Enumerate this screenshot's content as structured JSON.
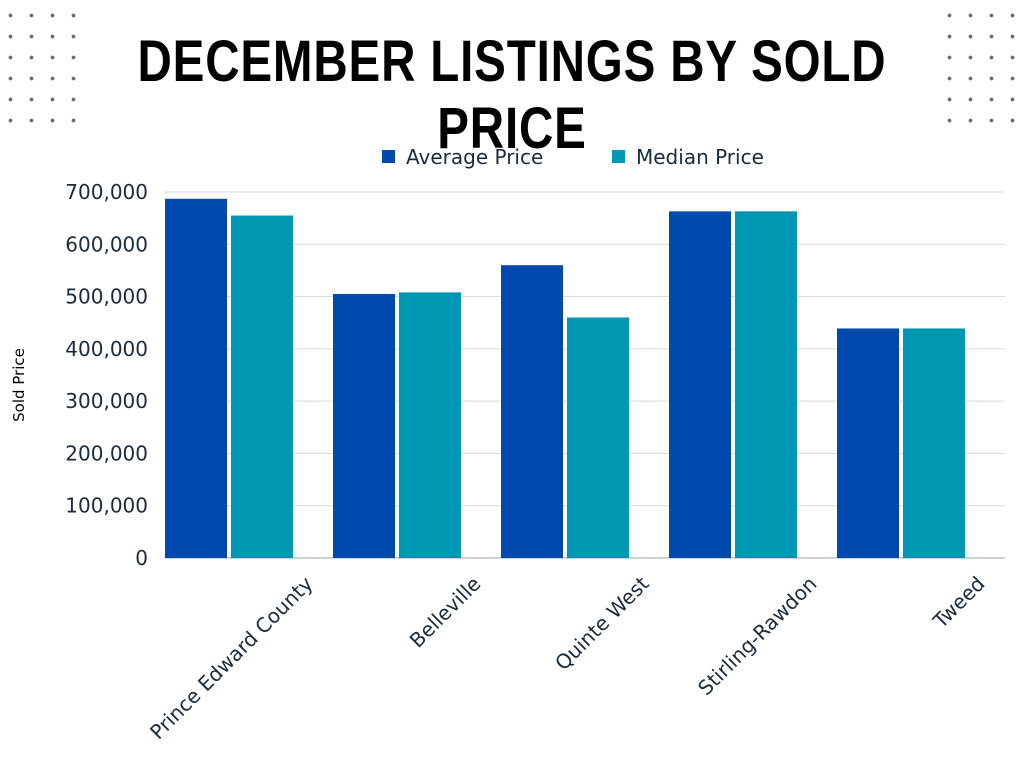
{
  "chart_data": {
    "type": "bar",
    "title": "DECEMBER LISTINGS BY SOLD PRICE",
    "ylabel": "Sold Price",
    "xlabel": "",
    "ylim": [
      0,
      700000
    ],
    "yticks": [
      "0",
      "100,000",
      "200,000",
      "300,000",
      "400,000",
      "500,000",
      "600,000",
      "700,000"
    ],
    "ytick_values": [
      0,
      100000,
      200000,
      300000,
      400000,
      500000,
      600000,
      700000
    ],
    "grid": true,
    "legend_position": "top",
    "categories": [
      "Prince Edward County",
      "Belleville",
      "Quinte West",
      "Stirling-Rawdon",
      "Tweed"
    ],
    "series": [
      {
        "name": "Average Price",
        "color": "#004aad",
        "values": [
          687000,
          505000,
          560000,
          663000,
          439000
        ]
      },
      {
        "name": "Median Price",
        "color": "#0097b2",
        "values": [
          655000,
          508000,
          460000,
          663000,
          439000
        ]
      }
    ]
  }
}
